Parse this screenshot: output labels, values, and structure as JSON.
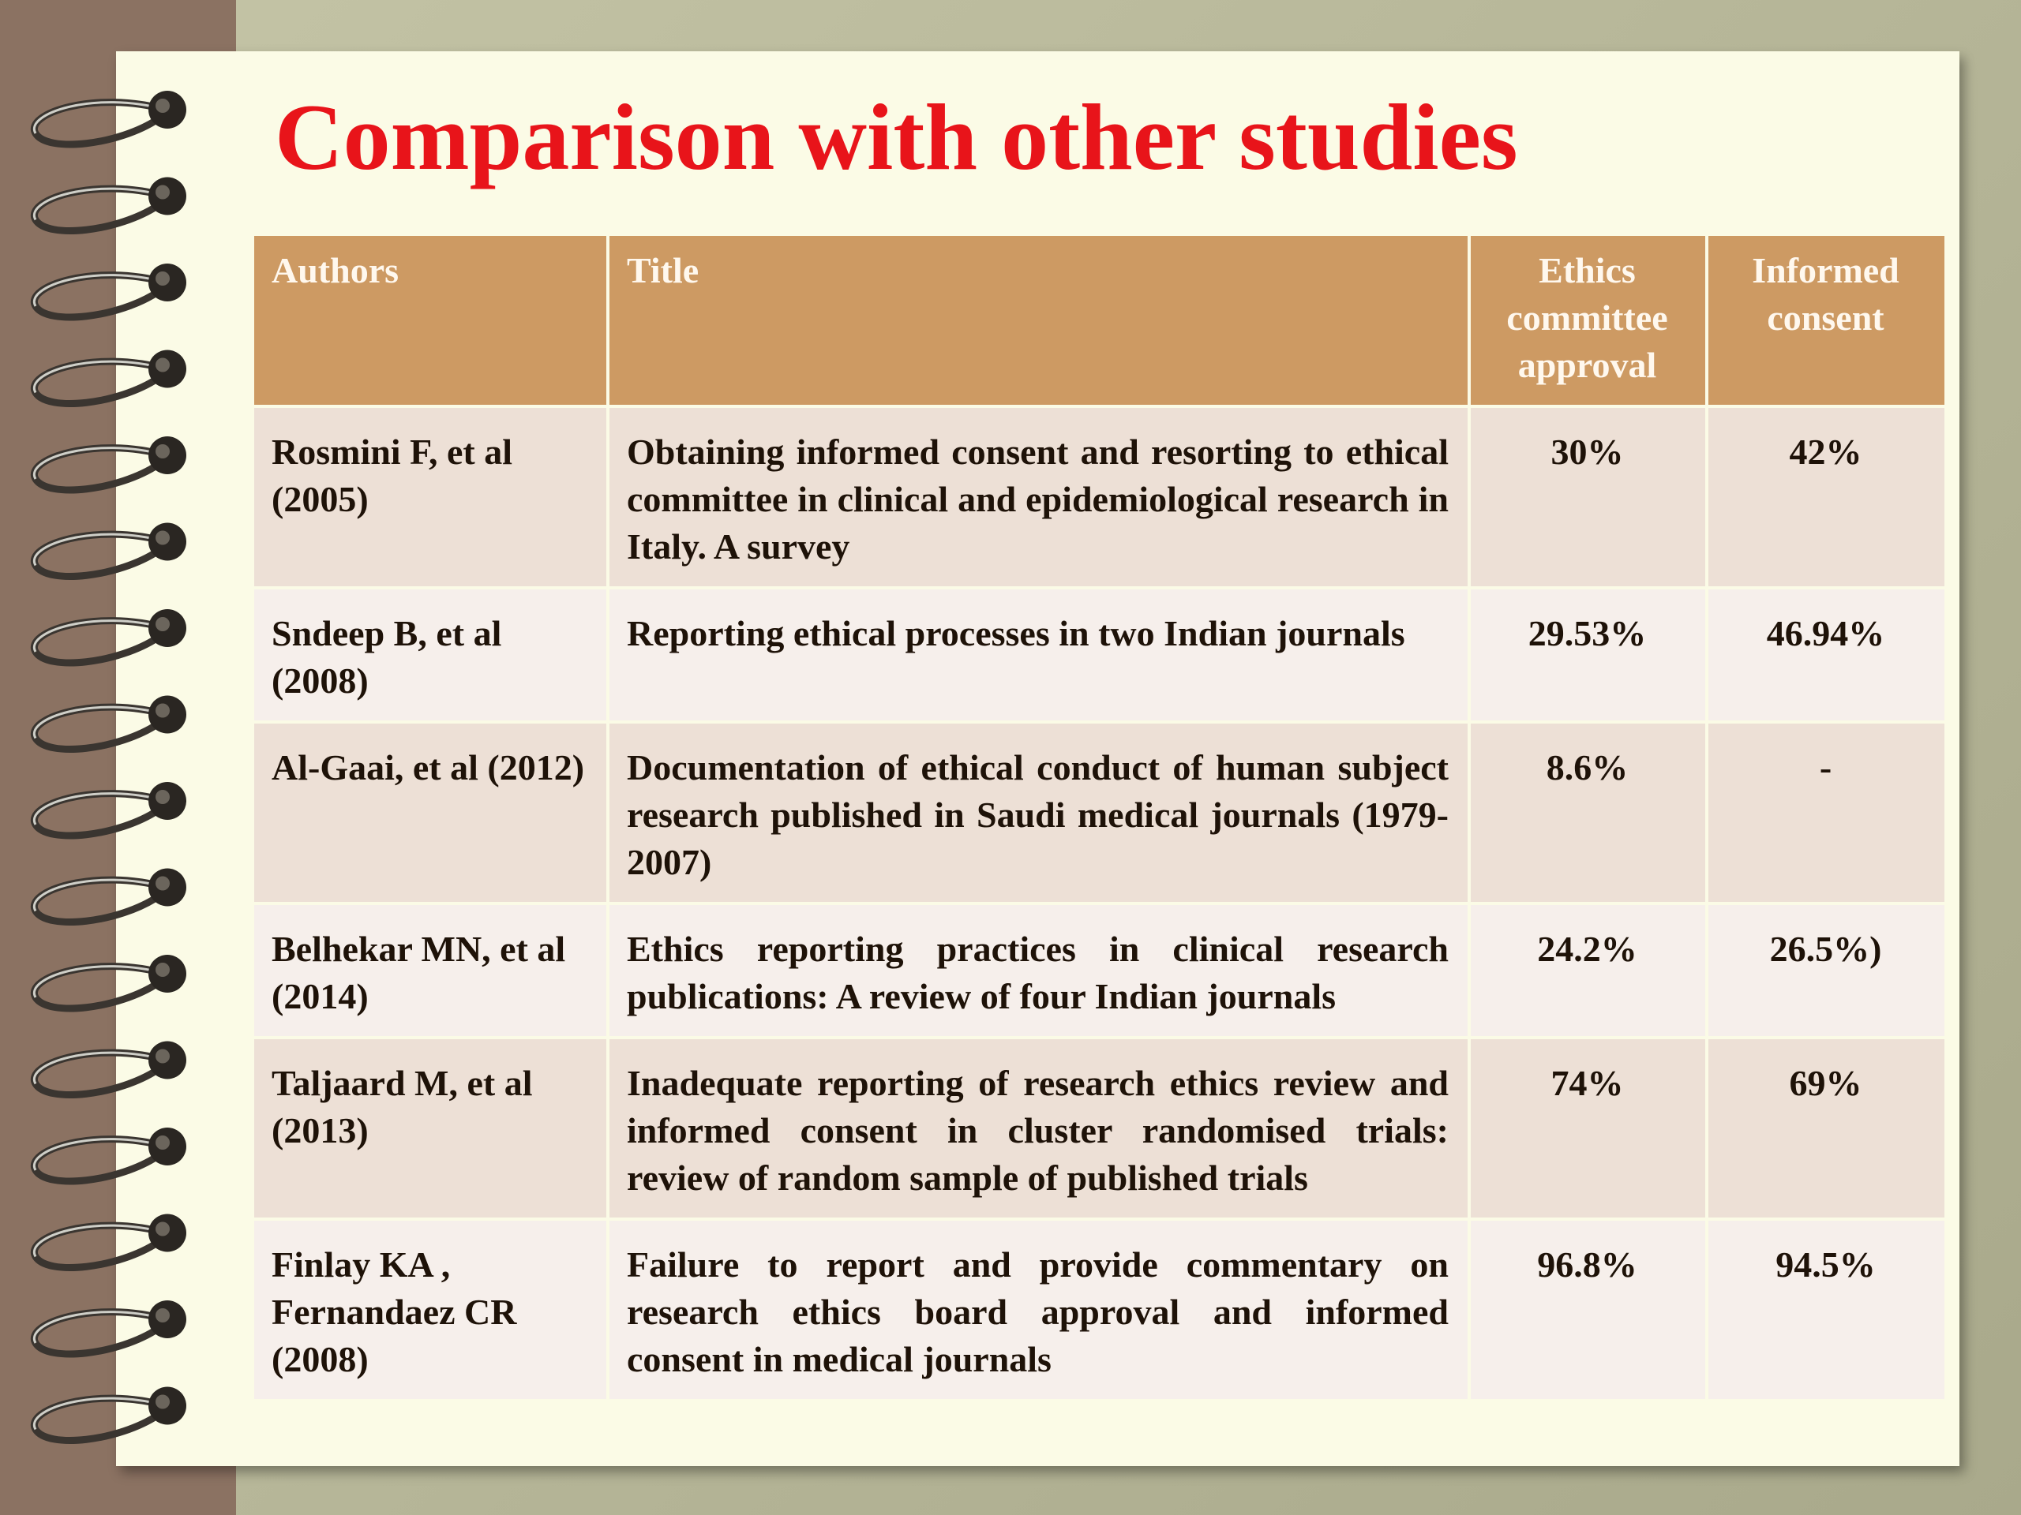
{
  "title": "Comparison with other studies",
  "table": {
    "header": [
      "Authors",
      "Title",
      "Ethics committee approval",
      "Informed consent"
    ],
    "rows": [
      [
        "Rosmini F, et al (2005)",
        "Obtaining informed consent and resorting to ethical committee in clinical and epidemiological research in Italy. A survey",
        "30%",
        "42%"
      ],
      [
        "Sndeep B, et al (2008)",
        "Reporting ethical processes in two Indian journals",
        "29.53%",
        "46.94%"
      ],
      [
        "Al-Gaai, et al (2012)",
        "Documentation of ethical conduct of human subject research published in Saudi medical journals (1979-2007)",
        "8.6%",
        "-"
      ],
      [
        "Belhekar MN, et al (2014)",
        "Ethics reporting practices in clinical research publications: A review of four Indian journals",
        "24.2%",
        "26.5%)"
      ],
      [
        "Taljaard M, et al (2013)",
        "Inadequate reporting of research ethics review and informed consent in cluster randomised trials: review of random sample of published trials",
        "74%",
        "69%"
      ],
      [
        "Finlay KA , Fernandaez CR (2008)",
        "Failure to report and provide commentary on research ethics board approval and informed consent in medical journals",
        "96.8%",
        "94.5%"
      ]
    ]
  }
}
